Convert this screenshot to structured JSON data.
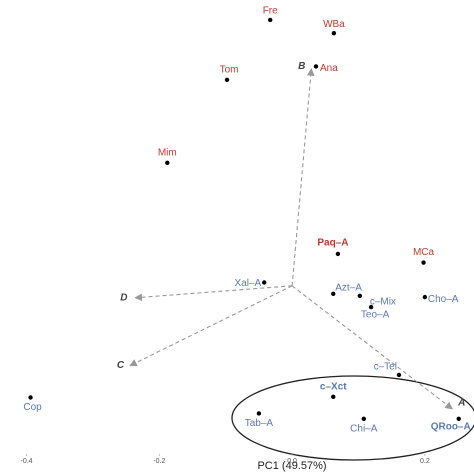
{
  "chart_data": {
    "type": "scatter",
    "x_label": "PC1 (49.57%)",
    "xlim": [
      -0.44,
      0.274
    ],
    "ylim": [
      -0.25,
      0.43
    ],
    "xticks": [
      -0.4,
      -0.2,
      {
        "value": 0,
        "label": "0.0"
      },
      0.2
    ],
    "points": [
      {
        "label": "Fre",
        "x": -0.033,
        "y": 0.4,
        "color": "#c0392b",
        "bold": false
      },
      {
        "label": "WBa",
        "x": 0.063,
        "y": 0.38,
        "color": "#c0392b",
        "bold": false
      },
      {
        "label": "Tom",
        "x": -0.098,
        "y": 0.31,
        "color": "#c0392b",
        "bold": false
      },
      {
        "label": "Ana",
        "x": 0.036,
        "y": 0.33,
        "color": "#c0392b",
        "bold": false
      },
      {
        "label": "Mim",
        "x": -0.188,
        "y": 0.185,
        "color": "#c0392b",
        "bold": false
      },
      {
        "label": "Paq–A",
        "x": 0.069,
        "y": 0.048,
        "color": "#c0392b",
        "bold": true
      },
      {
        "label": "MCa",
        "x": 0.198,
        "y": 0.035,
        "color": "#c0392b",
        "bold": false
      },
      {
        "label": "Xal–A",
        "x": -0.042,
        "y": 0.005,
        "color": "#5b78b5",
        "bold": false
      },
      {
        "label": "Azt–A",
        "x": 0.062,
        "y": -0.012,
        "color": "#5b78b5",
        "bold": false
      },
      {
        "label": "c–Mix",
        "x": 0.102,
        "y": -0.015,
        "color": "#5b78b5",
        "bold": false
      },
      {
        "label": "Teo–A",
        "x": 0.119,
        "y": -0.032,
        "color": "#5b78b5",
        "bold": false
      },
      {
        "label": "Cho–A",
        "x": 0.2,
        "y": -0.017,
        "color": "#5b78b5",
        "bold": false
      },
      {
        "label": "c–Tel",
        "x": 0.161,
        "y": -0.134,
        "color": "#5b78b5",
        "bold": false
      },
      {
        "label": "c–Xct",
        "x": 0.062,
        "y": -0.167,
        "color": "#5b78b5",
        "bold": true
      },
      {
        "label": "Cop",
        "x": -0.394,
        "y": -0.168,
        "color": "#5b78b5",
        "bold": false
      },
      {
        "label": "Tab–A",
        "x": -0.05,
        "y": -0.192,
        "color": "#5b78b5",
        "bold": false
      },
      {
        "label": "Chi–A",
        "x": 0.108,
        "y": -0.2,
        "color": "#5b78b5",
        "bold": false
      },
      {
        "label": "QRoo–A",
        "x": 0.251,
        "y": -0.2,
        "color": "#5b78b5",
        "bold": true
      }
    ],
    "arrows": [
      {
        "label": "B",
        "x": 0.029,
        "y": 0.326
      },
      {
        "label": "D",
        "x": -0.236,
        "y": -0.018
      },
      {
        "label": "C",
        "x": -0.244,
        "y": -0.12
      },
      {
        "label": "A",
        "x": 0.241,
        "y": -0.185
      }
    ]
  }
}
